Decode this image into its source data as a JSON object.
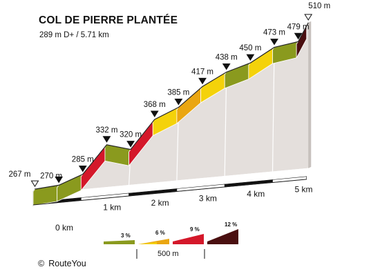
{
  "title": "COL DE PIERRE PLANTÉE",
  "subtitle": "289 m D+ / 5.71 km",
  "credit": {
    "symbol": "©",
    "text": "RouteYou"
  },
  "chart_data": {
    "type": "area",
    "title": "COL DE PIERRE PLANTÉE",
    "subtitle": "289 m D+ / 5.71 km",
    "x_unit": "km",
    "y_unit": "m",
    "xlim": [
      0,
      5.71
    ],
    "points": [
      {
        "km": 0.0,
        "elev": 267,
        "label": "267 m"
      },
      {
        "km": 0.5,
        "elev": 270,
        "label": "270 m"
      },
      {
        "km": 1.0,
        "elev": 285,
        "label": "285 m"
      },
      {
        "km": 1.5,
        "elev": 332,
        "label": "332 m"
      },
      {
        "km": 2.0,
        "elev": 320,
        "label": "320 m"
      },
      {
        "km": 2.5,
        "elev": 368,
        "label": "368 m"
      },
      {
        "km": 3.0,
        "elev": 385,
        "label": "385 m"
      },
      {
        "km": 3.5,
        "elev": 417,
        "label": "417 m"
      },
      {
        "km": 4.0,
        "elev": 438,
        "label": "438 m"
      },
      {
        "km": 4.5,
        "elev": 450,
        "label": "450 m"
      },
      {
        "km": 5.0,
        "elev": 473,
        "label": "473 m"
      },
      {
        "km": 5.5,
        "elev": 479,
        "label": "479 m"
      },
      {
        "km": 5.71,
        "elev": 510,
        "label": "510 m"
      }
    ],
    "segments": [
      {
        "from_km": 0.0,
        "to_km": 0.5,
        "gradient_class": "3 %"
      },
      {
        "from_km": 0.5,
        "to_km": 1.0,
        "gradient_class": "3 %"
      },
      {
        "from_km": 1.0,
        "to_km": 1.5,
        "gradient_class": "9 %"
      },
      {
        "from_km": 1.5,
        "to_km": 2.0,
        "gradient_class": "3 %"
      },
      {
        "from_km": 2.0,
        "to_km": 2.5,
        "gradient_class": "9 %"
      },
      {
        "from_km": 2.5,
        "to_km": 3.0,
        "gradient_class": "6 %"
      },
      {
        "from_km": 3.0,
        "to_km": 3.5,
        "gradient_class": "6 %+"
      },
      {
        "from_km": 3.5,
        "to_km": 4.0,
        "gradient_class": "6 %"
      },
      {
        "from_km": 4.0,
        "to_km": 4.5,
        "gradient_class": "3 %"
      },
      {
        "from_km": 4.5,
        "to_km": 5.0,
        "gradient_class": "6 %"
      },
      {
        "from_km": 5.0,
        "to_km": 5.5,
        "gradient_class": "3 %"
      },
      {
        "from_km": 5.5,
        "to_km": 5.71,
        "gradient_class": "12 %"
      }
    ],
    "x_ticks": [
      {
        "km": 0,
        "label": "0 km"
      },
      {
        "km": 1,
        "label": "1 km"
      },
      {
        "km": 2,
        "label": "2 km"
      },
      {
        "km": 3,
        "label": "3 km"
      },
      {
        "km": 4,
        "label": "4 km"
      },
      {
        "km": 5,
        "label": "5 km"
      }
    ],
    "legend": {
      "items": [
        {
          "label": "3 %",
          "color": "#8a9a1e"
        },
        {
          "label": "6 %",
          "color": "#f4d20a"
        },
        {
          "label": "9 %",
          "color": "#d4182a"
        },
        {
          "label": "12 %",
          "color": "#4a0f10"
        }
      ],
      "extra_color": "#eaa612",
      "scale_label": "500 m"
    },
    "colors": {
      "3 %": "#8a9a1e",
      "6 %": "#f4d20a",
      "6 %+": "#eaa612",
      "9 %": "#d4182a",
      "12 %": "#4a0f10",
      "side_light": "#e4dfdc",
      "side_dark": "#c7c1bd",
      "outline": "#222222"
    }
  }
}
